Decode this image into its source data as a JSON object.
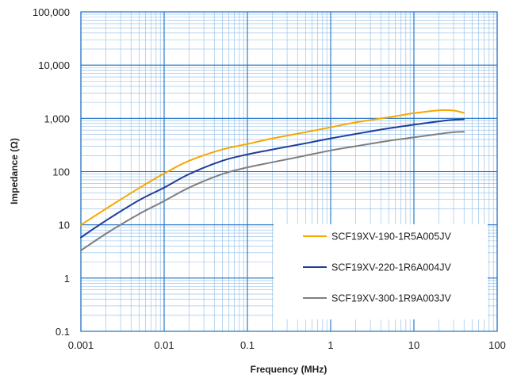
{
  "chart_data": {
    "type": "line",
    "xlabel": "Frequency (MHz)",
    "ylabel": "Impedance (Ω)",
    "x_scale": "log",
    "y_scale": "log",
    "xlim": [
      0.001,
      100
    ],
    "ylim": [
      0.1,
      100000
    ],
    "grid": true,
    "x_ticks": [
      "0.001",
      "0.01",
      "0.1",
      "1",
      "10",
      "100"
    ],
    "y_ticks": [
      "0.1",
      "1",
      "10",
      "100",
      "1,000",
      "10,000",
      "100,000"
    ],
    "legend_position": "bottom-right",
    "series": [
      {
        "name": "SCF19XV-190-1R5A005JV",
        "color": "#f5a800",
        "x": [
          0.001,
          0.002,
          0.005,
          0.01,
          0.02,
          0.05,
          0.1,
          0.2,
          0.5,
          1,
          2,
          5,
          10,
          20,
          30,
          40
        ],
        "y": [
          10,
          20,
          49,
          92,
          160,
          260,
          330,
          420,
          550,
          680,
          840,
          1050,
          1250,
          1420,
          1400,
          1270
        ]
      },
      {
        "name": "SCF19XV-220-1R6A004JV",
        "color": "#1f3d99",
        "x": [
          0.001,
          0.002,
          0.005,
          0.01,
          0.02,
          0.05,
          0.1,
          0.2,
          0.5,
          1,
          2,
          5,
          10,
          20,
          30,
          40
        ],
        "y": [
          5.8,
          12,
          29,
          50,
          90,
          160,
          210,
          260,
          340,
          420,
          510,
          650,
          760,
          880,
          940,
          960
        ]
      },
      {
        "name": "SCF19XV-300-1R9A003JV",
        "color": "#7f7f7f",
        "x": [
          0.001,
          0.002,
          0.005,
          0.01,
          0.02,
          0.05,
          0.1,
          0.2,
          0.5,
          1,
          2,
          5,
          10,
          20,
          30,
          40
        ],
        "y": [
          3.3,
          6.8,
          16,
          28,
          50,
          90,
          120,
          150,
          200,
          250,
          300,
          380,
          440,
          510,
          550,
          560
        ]
      }
    ]
  }
}
